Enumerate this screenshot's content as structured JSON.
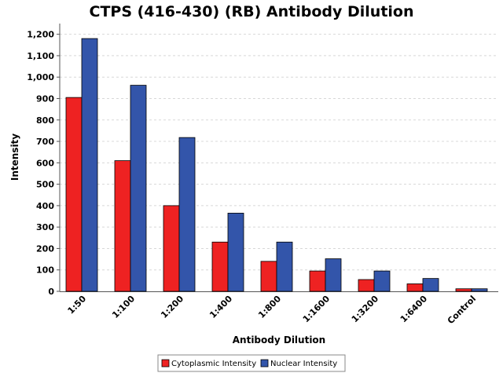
{
  "chart_data": {
    "type": "bar",
    "title": "CTPS (416-430) (RB) Antibody Dilution",
    "xlabel": "Antibody Dilution",
    "ylabel": "Intensity",
    "categories": [
      "1:50",
      "1:100",
      "1:200",
      "1:400",
      "1:800",
      "1:1600",
      "1:3200",
      "1:6400",
      "Control"
    ],
    "series": [
      {
        "name": "Cytoplasmic Intensity",
        "color": "#ee2222",
        "values": [
          905,
          610,
          400,
          230,
          140,
          95,
          55,
          35,
          12
        ]
      },
      {
        "name": "Nuclear Intensity",
        "color": "#3355aa",
        "values": [
          1180,
          962,
          718,
          365,
          230,
          152,
          95,
          60,
          12
        ]
      }
    ],
    "ylim": [
      0,
      1250
    ],
    "yticks": [
      0,
      100,
      200,
      300,
      400,
      500,
      600,
      700,
      800,
      900,
      1000,
      1100,
      1200
    ],
    "ytick_labels": [
      "0",
      "100",
      "200",
      "300",
      "400",
      "500",
      "600",
      "700",
      "800",
      "900",
      "1,000",
      "1,100",
      "1,200"
    ],
    "grid": true,
    "legend": "bottom"
  }
}
